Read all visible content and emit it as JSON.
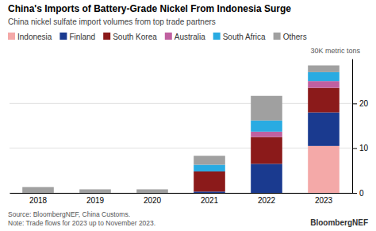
{
  "chart_data": {
    "type": "bar",
    "stacked": true,
    "title": "China's Imports of Battery-Grade Nickel From Indonesia Surge",
    "subtitle": "China nickel sulfate import volumes from top trade partners",
    "annotation": "30K metric tons",
    "footnotes": [
      "Source: BloombergNEF, China Customs.",
      "Note: Trade flows for 2023 up to November 2023."
    ],
    "brand": "BloombergNEF",
    "categories": [
      "2018",
      "2019",
      "2020",
      "2021",
      "2022",
      "2023"
    ],
    "series": [
      {
        "name": "Indonesia",
        "color": "#F4A9A8",
        "values": [
          0.0,
          0.0,
          0.0,
          0.0,
          0.0,
          10.5
        ]
      },
      {
        "name": "Finland",
        "color": "#1A3A8F",
        "values": [
          0.0,
          0.0,
          0.0,
          0.3,
          6.5,
          7.5
        ]
      },
      {
        "name": "South Korea",
        "color": "#8B1A1A",
        "values": [
          0.0,
          0.0,
          0.0,
          4.5,
          6.0,
          5.5
        ]
      },
      {
        "name": "Australia",
        "color": "#C060A0",
        "values": [
          0.0,
          0.0,
          0.0,
          0.0,
          1.2,
          1.5
        ]
      },
      {
        "name": "South Africa",
        "color": "#29ABE2",
        "values": [
          0.0,
          0.0,
          0.0,
          1.5,
          2.5,
          2.0
        ]
      },
      {
        "name": "Others",
        "color": "#A0A0A0",
        "values": [
          1.3,
          0.8,
          0.8,
          2.0,
          5.5,
          1.5
        ]
      }
    ],
    "ylim": [
      0,
      30
    ],
    "yticks": [
      0,
      10,
      20
    ],
    "grid": true,
    "legend": "top"
  }
}
